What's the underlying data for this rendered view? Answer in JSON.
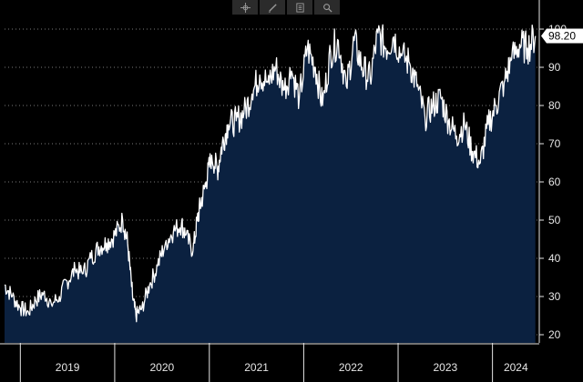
{
  "toolbar": {
    "tools": [
      "crosshair-icon",
      "pencil-icon",
      "document-icon",
      "magnifier-icon"
    ]
  },
  "colors": {
    "background": "#000000",
    "area_fill": "#0b2140",
    "line": "#ffffff",
    "grid": "#7a7a7a",
    "axis_text": "#e6e6e6"
  },
  "chart_data": {
    "type": "area",
    "x_axis": {
      "type": "date",
      "labels": [
        "2019",
        "2020",
        "2021",
        "2022",
        "2023",
        "2024"
      ]
    },
    "y_axis": {
      "ticks": [
        20,
        30,
        40,
        50,
        60,
        70,
        80,
        90,
        100
      ],
      "position": "right",
      "ylim": [
        16,
        100
      ]
    },
    "xlim": [
      "2018-11-01",
      "2024-06-30"
    ],
    "grid": "horizontal-dotted",
    "last_value_label": "98.20",
    "series": [
      {
        "x": [
          "2018-11-01",
          "2018-12-01",
          "2019-01-01",
          "2019-02-01",
          "2019-03-01",
          "2019-04-01",
          "2019-05-01",
          "2019-06-01",
          "2019-07-01",
          "2019-08-01",
          "2019-09-01",
          "2019-10-01",
          "2019-11-01",
          "2019-12-01",
          "2020-01-01",
          "2020-02-01",
          "2020-02-20",
          "2020-03-10",
          "2020-03-23",
          "2020-04-15",
          "2020-05-15",
          "2020-06-15",
          "2020-07-15",
          "2020-08-15",
          "2020-09-15",
          "2020-10-01",
          "2020-10-30",
          "2020-11-15",
          "2020-12-01",
          "2020-12-20",
          "2021-01-10",
          "2021-02-01",
          "2021-02-20",
          "2021-03-15",
          "2021-04-15",
          "2021-05-15",
          "2021-06-15",
          "2021-07-15",
          "2021-08-15",
          "2021-09-15",
          "2021-10-15",
          "2021-11-15",
          "2021-12-15",
          "2022-01-15",
          "2022-02-15",
          "2022-03-15",
          "2022-04-15",
          "2022-05-15",
          "2022-06-15",
          "2022-07-15",
          "2022-08-15",
          "2022-09-15",
          "2022-10-15",
          "2022-11-15",
          "2022-12-15",
          "2023-01-15",
          "2023-02-15",
          "2023-03-15",
          "2023-04-15",
          "2023-05-15",
          "2023-06-15",
          "2023-07-15",
          "2023-08-15",
          "2023-09-15",
          "2023-10-15",
          "2023-11-15",
          "2023-12-15",
          "2024-01-15",
          "2024-02-15",
          "2024-03-15",
          "2024-04-15",
          "2024-05-15",
          "2024-06-15"
        ],
        "y": [
          33,
          30,
          27,
          26,
          29,
          31,
          28,
          30,
          34,
          37,
          36,
          40,
          43,
          44,
          46,
          50,
          44,
          30,
          25,
          27,
          33,
          38,
          44,
          47,
          49,
          46,
          42,
          50,
          55,
          60,
          67,
          63,
          70,
          75,
          76,
          78,
          83,
          88,
          86,
          90,
          84,
          89,
          82,
          95,
          90,
          80,
          94,
          97,
          85,
          97,
          90,
          87,
          99,
          95,
          98,
          93,
          91,
          85,
          77,
          80,
          82,
          76,
          72,
          75,
          68,
          65,
          75,
          80,
          86,
          92,
          96,
          95,
          98.2
        ]
      }
    ]
  }
}
